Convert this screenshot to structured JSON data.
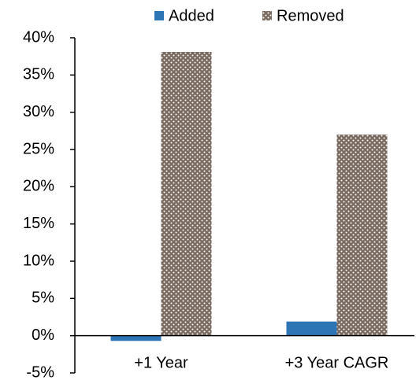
{
  "chart_data": {
    "type": "bar",
    "categories": [
      "+1 Year",
      "+3 Year CAGR"
    ],
    "series": [
      {
        "name": "Added",
        "color": "#2e75b6",
        "values": [
          -0.7,
          1.9
        ]
      },
      {
        "name": "Removed",
        "color": "#7a6a60",
        "values": [
          38.1,
          27.0
        ]
      }
    ],
    "ylim": [
      -5,
      40
    ],
    "yticks": [
      {
        "value": -5,
        "label": "-5%"
      },
      {
        "value": 0,
        "label": "0%"
      },
      {
        "value": 5,
        "label": "5%"
      },
      {
        "value": 10,
        "label": "10%"
      },
      {
        "value": 15,
        "label": "15%"
      },
      {
        "value": 20,
        "label": "20%"
      },
      {
        "value": 25,
        "label": "25%"
      },
      {
        "value": 30,
        "label": "30%"
      },
      {
        "value": 35,
        "label": "35%"
      },
      {
        "value": 40,
        "label": "40%"
      }
    ],
    "legend": "top",
    "grid": false
  }
}
